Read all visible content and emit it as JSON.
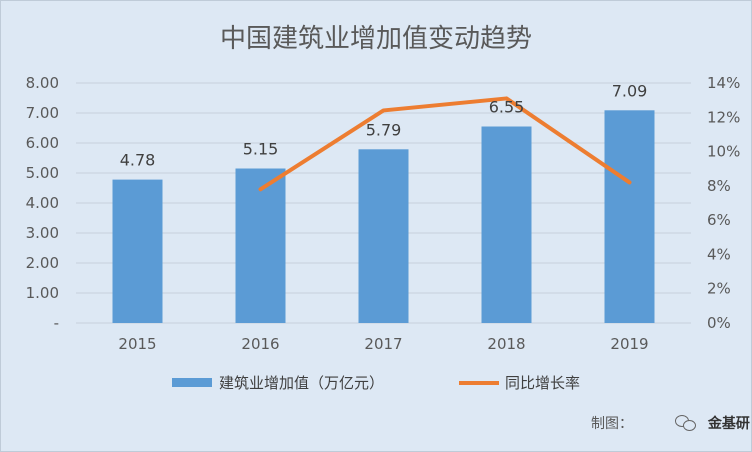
{
  "chart_data": {
    "type": "bar+line",
    "title": "中国建筑业增加值变动趋势",
    "categories": [
      "2015",
      "2016",
      "2017",
      "2018",
      "2019"
    ],
    "series": [
      {
        "name": "建筑业增加值（万亿元）",
        "type": "bar",
        "axis": "left",
        "values": [
          4.78,
          5.15,
          5.79,
          6.55,
          7.09
        ],
        "data_labels": [
          "4.78",
          "5.15",
          "5.79",
          "6.55",
          "7.09"
        ],
        "color": "#5b9bd5"
      },
      {
        "name": "同比增长率",
        "type": "line",
        "axis": "right",
        "values": [
          null,
          7.8,
          12.4,
          13.1,
          8.2
        ],
        "color": "#ed7d31"
      }
    ],
    "y_left": {
      "range": [
        0,
        8
      ],
      "ticks": [
        0,
        1,
        2,
        3,
        4,
        5,
        6,
        7,
        8
      ],
      "tick_labels": [
        "-",
        "1.00",
        "2.00",
        "3.00",
        "4.00",
        "5.00",
        "6.00",
        "7.00",
        "8.00"
      ]
    },
    "y_right": {
      "range": [
        0,
        14
      ],
      "ticks": [
        0,
        2,
        4,
        6,
        8,
        10,
        12,
        14
      ],
      "tick_labels": [
        "0%",
        "2%",
        "4%",
        "6%",
        "8%",
        "10%",
        "12%",
        "14%"
      ]
    },
    "grid": true,
    "legend_position": "bottom"
  },
  "credit": {
    "prefix": "制图：",
    "brand": "金基研"
  },
  "colors": {
    "background": "#dde8f4",
    "bar": "#5b9bd5",
    "line": "#ed7d31",
    "grid": "#c6d0dc"
  }
}
